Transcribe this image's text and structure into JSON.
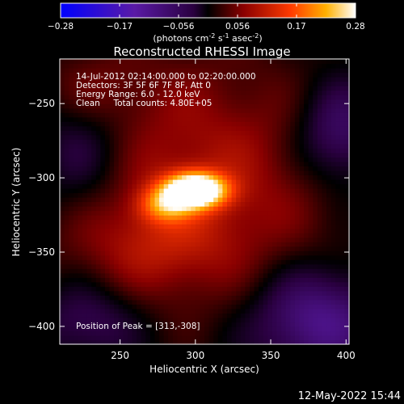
{
  "title": "Reconstructed RHESSI Image",
  "info": {
    "line1": "14-Jul-2012 02:14:00.000 to 02:20:00.000",
    "line2": "Detectors: 3F 5F 6F 7F 8F, Att 0",
    "line3": "Energy Range: 6.0 - 12.0 keV",
    "line4": "Clean     Total counts: 4.80E+05",
    "peak": "Position of Peak = [313,-308]"
  },
  "footer_timestamp": "12-May-2022 15:44",
  "colorbar": {
    "ticks": [
      "-0.28",
      "-0.17",
      "-0.056",
      "0.056",
      "0.17",
      "0.28"
    ],
    "range": [
      -0.28,
      0.28
    ],
    "unit_prefix": "(photons cm",
    "unit_sup1": "-2",
    "unit_mid": " s",
    "unit_sup2": "-1",
    "unit_mid2": " asec",
    "unit_sup3": "-2",
    "unit_suffix": ")"
  },
  "chart_data": {
    "type": "heatmap",
    "title": "Reconstructed RHESSI Image",
    "xlabel": "Heliocentric X (arcsec)",
    "ylabel": "Heliocentric Y (arcsec)",
    "xlim": [
      210,
      402
    ],
    "ylim": [
      -412,
      -220
    ],
    "xticks": [
      250,
      300,
      350,
      400
    ],
    "yticks": [
      -250,
      -300,
      -350,
      -400
    ],
    "colormap": "rhessi-signed (blue-purple negative, black zero, red-yellow-white positive)",
    "peak_position": [
      313,
      -308
    ],
    "peak_value": 0.28,
    "sources": [
      {
        "x": 300,
        "y": -308,
        "amplitude": 0.33,
        "sigma_x": 14,
        "sigma_y": 8
      },
      {
        "x": 280,
        "y": -318,
        "amplitude": 0.12,
        "sigma_x": 12,
        "sigma_y": 8
      },
      {
        "x": 300,
        "y": -300,
        "amplitude": 0.09,
        "sigma_x": 70,
        "sigma_y": 60
      },
      {
        "x": 270,
        "y": -345,
        "amplitude": 0.05,
        "sigma_x": 40,
        "sigma_y": 25
      },
      {
        "x": 230,
        "y": -240,
        "amplitude": 0.05,
        "sigma_x": 25,
        "sigma_y": 20
      },
      {
        "x": 380,
        "y": -395,
        "amplitude": -0.12,
        "sigma_x": 30,
        "sigma_y": 25
      },
      {
        "x": 395,
        "y": -270,
        "amplitude": -0.1,
        "sigma_x": 20,
        "sigma_y": 25
      },
      {
        "x": 225,
        "y": -280,
        "amplitude": -0.08,
        "sigma_x": 25,
        "sigma_y": 35
      },
      {
        "x": 230,
        "y": -395,
        "amplitude": -0.07,
        "sigma_x": 25,
        "sigma_y": 20
      }
    ]
  }
}
